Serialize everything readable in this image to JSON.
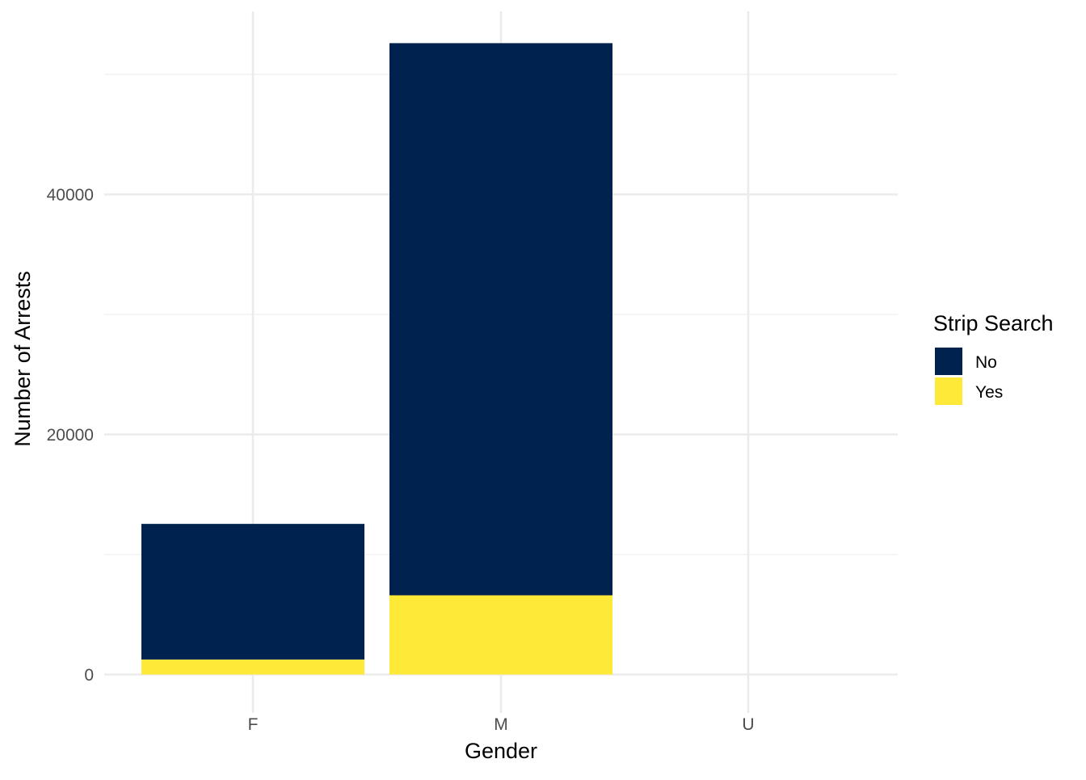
{
  "chart_data": {
    "type": "bar",
    "stacked": true,
    "categories": [
      "F",
      "M",
      "U"
    ],
    "series": [
      {
        "name": "No",
        "values": [
          11300,
          46000,
          0
        ],
        "color": "#00224E"
      },
      {
        "name": "Yes",
        "values": [
          1250,
          6600,
          0
        ],
        "color": "#FEE838"
      }
    ],
    "xlabel": "Gender",
    "ylabel": "Number of Arrests",
    "ylim": [
      0,
      55300
    ],
    "yticks": [
      0,
      20000,
      40000
    ],
    "ytick_labels": [
      "0",
      "20000",
      "40000"
    ],
    "minor_yticks": [
      10000,
      30000,
      50000
    ],
    "grid": true,
    "legend": {
      "title": "Strip Search",
      "position": "right",
      "entries": [
        "No",
        "Yes"
      ]
    }
  },
  "colors": {
    "background": "#ffffff",
    "grid_major": "#ebebeb",
    "grid_minor": "#f2f2f2",
    "tick_text": "#4d4d4d"
  }
}
